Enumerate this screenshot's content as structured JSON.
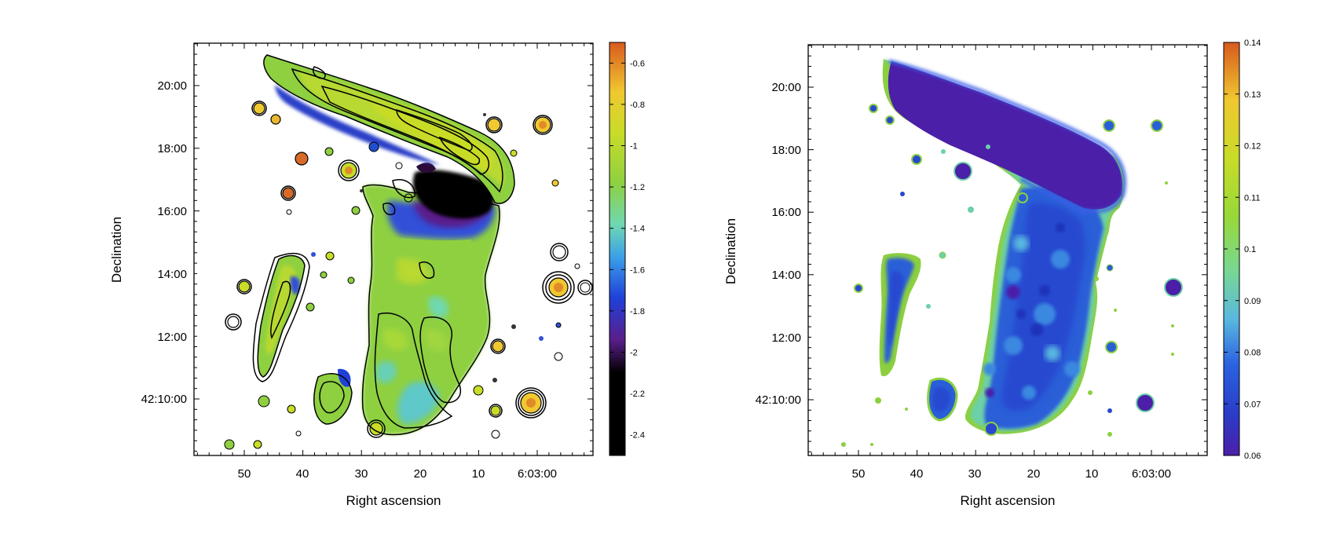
{
  "chart_data": [
    {
      "type": "heatmap",
      "title": "",
      "description_role": "spectral index map with contours",
      "xlabel": "Right ascension",
      "ylabel": "Declination",
      "x_ticks": [
        "50",
        "40",
        "30",
        "20",
        "10",
        "6:03:00"
      ],
      "y_ticks": [
        "20:00",
        "18:00",
        "16:00",
        "14:00",
        "12:00",
        "42:10:00"
      ],
      "colorbar": {
        "min": -2.5,
        "max": -0.5,
        "ticks": [
          "-0.6",
          "-0.8",
          "-1",
          "-1.2",
          "-1.4",
          "-1.6",
          "-1.8",
          "-2",
          "-2.2",
          "-2.4"
        ],
        "tick_values": [
          -0.6,
          -0.8,
          -1.0,
          -1.2,
          -1.4,
          -1.6,
          -1.8,
          -2.0,
          -2.2,
          -2.4
        ],
        "colormap": [
          "#000000",
          "#2a0a3a",
          "#5a1e8a",
          "#3050d8",
          "#3aa0e8",
          "#68d8b8",
          "#8ed040",
          "#c8dc28",
          "#f0c830",
          "#e08a28",
          "#d85a1e"
        ]
      },
      "contours": true
    },
    {
      "type": "heatmap",
      "title": "",
      "description_role": "spectral index error map",
      "xlabel": "Right ascension",
      "ylabel": "Declination",
      "x_ticks": [
        "50",
        "40",
        "30",
        "20",
        "10",
        "6:03:00"
      ],
      "y_ticks": [
        "20:00",
        "18:00",
        "16:00",
        "14:00",
        "12:00",
        "42:10:00"
      ],
      "colorbar": {
        "min": 0.06,
        "max": 0.14,
        "ticks": [
          "0.14",
          "0.13",
          "0.12",
          "0.11",
          "0.1",
          "0.09",
          "0.08",
          "0.07",
          "0.06"
        ],
        "tick_values": [
          0.14,
          0.13,
          0.12,
          0.11,
          0.1,
          0.09,
          0.08,
          0.07,
          0.06
        ],
        "colormap": [
          "#4b1fa8",
          "#2b3ec8",
          "#2a62e0",
          "#3a8ee8",
          "#5cc0d0",
          "#78d890",
          "#98d838",
          "#c8dc28",
          "#f0c830",
          "#e08a28",
          "#d85a1e"
        ]
      },
      "contours": false
    }
  ]
}
